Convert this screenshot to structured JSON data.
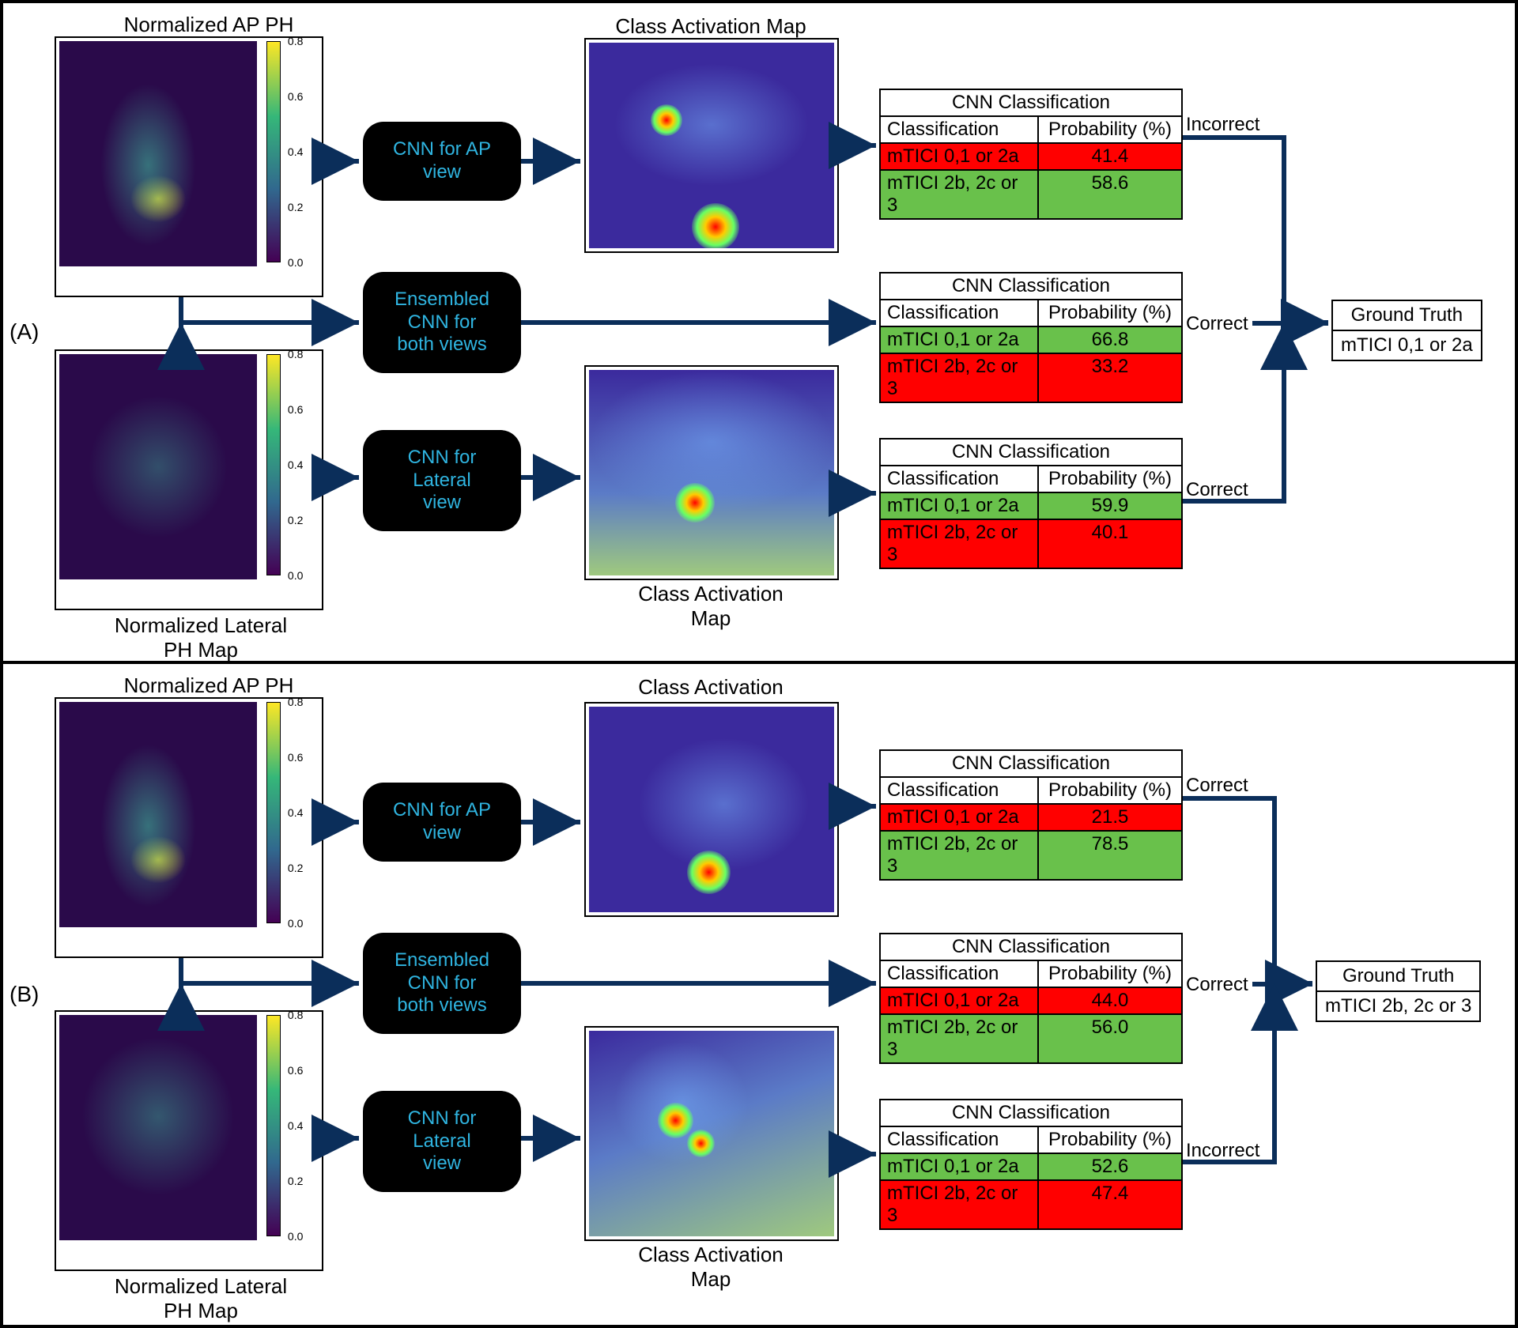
{
  "colors": {
    "arrow": "#0b2e5a",
    "cnn_text": "#2fb4e0",
    "row_green": "#69c14b",
    "row_red": "#ff0000",
    "border": "#000000"
  },
  "colorbar": {
    "gradient": "linear-gradient(to top, #440154 0%, #31688e 33%, #35b779 66%, #fde725 100%)",
    "ticks": [
      "0.0",
      "0.2",
      "0.4",
      "0.6",
      "0.8"
    ]
  },
  "cam_gradient": {
    "bg": "#3b2a9d"
  },
  "panels": {
    "A": {
      "label": "(A)",
      "ap_label": "Normalized AP PH\nMap",
      "lat_label": "Normalized Lateral\nPH Map",
      "cam_label_top": "Class Activation Map",
      "cam_label_bottom": "Class Activation\nMap",
      "cnn_ap": "CNN for AP\nview",
      "cnn_both": "Ensembled\nCNN for\nboth views",
      "cnn_lat": "CNN for\nLateral\nview",
      "tables": {
        "top": {
          "title": "CNN Classification",
          "h1": "Classification",
          "h2": "Probability (%)",
          "r1_label": "mTICI 0,1 or 2a",
          "r1_val": "41.4",
          "r1_color": "red",
          "r2_label": "mTICI 2b, 2c or 3",
          "r2_val": "58.6",
          "r2_color": "green",
          "verdict": "Incorrect"
        },
        "mid": {
          "title": "CNN Classification",
          "h1": "Classification",
          "h2": "Probability (%)",
          "r1_label": "mTICI 0,1 or 2a",
          "r1_val": "66.8",
          "r1_color": "green",
          "r2_label": "mTICI 2b, 2c or 3",
          "r2_val": "33.2",
          "r2_color": "red",
          "verdict": "Correct"
        },
        "bot": {
          "title": "CNN Classification",
          "h1": "Classification",
          "h2": "Probability (%)",
          "r1_label": "mTICI 0,1 or 2a",
          "r1_val": "59.9",
          "r1_color": "green",
          "r2_label": "mTICI 2b, 2c or 3",
          "r2_val": "40.1",
          "r2_color": "red",
          "verdict": "Correct"
        }
      },
      "ground_truth": {
        "title": "Ground Truth",
        "value": "mTICI 0,1 or 2a"
      }
    },
    "B": {
      "label": "(B)",
      "ap_label": "Normalized AP PH\nMap",
      "lat_label": "Normalized Lateral\nPH Map",
      "cam_label_top": "Class Activation\nMap",
      "cam_label_bottom": "Class Activation\nMap",
      "cnn_ap": "CNN for AP\nview",
      "cnn_both": "Ensembled\nCNN for\nboth views",
      "cnn_lat": "CNN for\nLateral\nview",
      "tables": {
        "top": {
          "title": "CNN Classification",
          "h1": "Classification",
          "h2": "Probability (%)",
          "r1_label": "mTICI 0,1 or 2a",
          "r1_val": "21.5",
          "r1_color": "red",
          "r2_label": "mTICI 2b, 2c or 3",
          "r2_val": "78.5",
          "r2_color": "green",
          "verdict": "Correct"
        },
        "mid": {
          "title": "CNN Classification",
          "h1": "Classification",
          "h2": "Probability (%)",
          "r1_label": "mTICI 0,1 or 2a",
          "r1_val": "44.0",
          "r1_color": "red",
          "r2_label": "mTICI 2b, 2c or 3",
          "r2_val": "56.0",
          "r2_color": "green",
          "verdict": "Correct"
        },
        "bot": {
          "title": "CNN Classification",
          "h1": "Classification",
          "h2": "Probability (%)",
          "r1_label": "mTICI 0,1 or 2a",
          "r1_val": "52.6",
          "r1_color": "green",
          "r2_label": "mTICI 2b, 2c or 3",
          "r2_val": "47.4",
          "r2_color": "red",
          "verdict": "Incorrect"
        }
      },
      "ground_truth": {
        "title": "Ground Truth",
        "value": "mTICI 2b, 2c or 3"
      }
    }
  }
}
